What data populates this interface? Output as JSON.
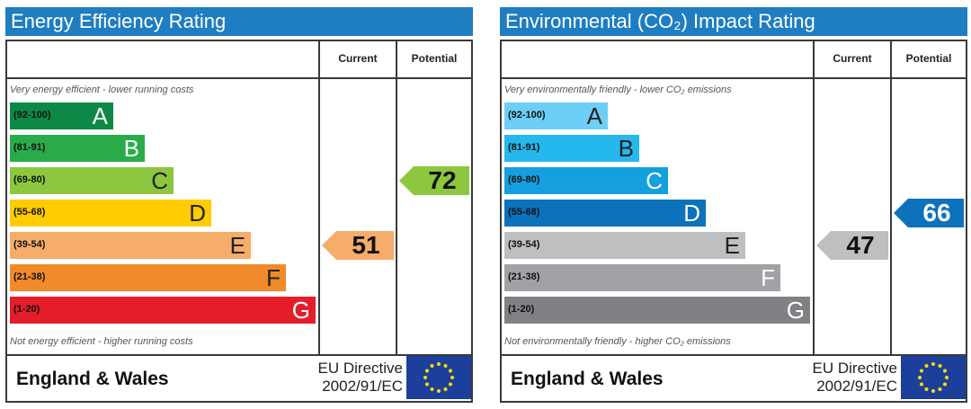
{
  "chart_data": [
    {
      "type": "bar",
      "title": "Energy Efficiency Rating",
      "columns": [
        "Current",
        "Potential"
      ],
      "top_note": "Very energy efficient - lower running costs",
      "bottom_note": "Not energy efficient - higher running costs",
      "bands": [
        {
          "range": "(92-100)",
          "letter": "A",
          "color": "#0c8a45"
        },
        {
          "range": "(81-91)",
          "letter": "B",
          "color": "#2aab4a"
        },
        {
          "range": "(69-80)",
          "letter": "C",
          "color": "#8dc63f"
        },
        {
          "range": "(55-68)",
          "letter": "D",
          "color": "#ffcc00"
        },
        {
          "range": "(39-54)",
          "letter": "E",
          "color": "#f6ac6a"
        },
        {
          "range": "(21-38)",
          "letter": "F",
          "color": "#f08a2a"
        },
        {
          "range": "(1-20)",
          "letter": "G",
          "color": "#e31e2a"
        }
      ],
      "current": {
        "value": 51,
        "band": "E",
        "color": "#f6ac6a"
      },
      "potential": {
        "value": 72,
        "band": "C",
        "color": "#8dc63f"
      },
      "footer": {
        "region": "England & Wales",
        "directive_line1": "EU Directive",
        "directive_line2": "2002/91/EC"
      }
    },
    {
      "type": "bar",
      "title": "Environmental (CO₂) Impact Rating",
      "columns": [
        "Current",
        "Potential"
      ],
      "top_note": "Very environmentally friendly - lower CO₂ emissions",
      "bottom_note": "Not environmentally friendly - higher CO₂ emissions",
      "bands": [
        {
          "range": "(92-100)",
          "letter": "A",
          "color": "#6dcff6"
        },
        {
          "range": "(81-91)",
          "letter": "B",
          "color": "#25b8ec"
        },
        {
          "range": "(69-80)",
          "letter": "C",
          "color": "#14a0de"
        },
        {
          "range": "(55-68)",
          "letter": "D",
          "color": "#0b72bb"
        },
        {
          "range": "(39-54)",
          "letter": "E",
          "color": "#bebfc1"
        },
        {
          "range": "(21-38)",
          "letter": "F",
          "color": "#a1a2a5"
        },
        {
          "range": "(1-20)",
          "letter": "G",
          "color": "#808184"
        }
      ],
      "current": {
        "value": 47,
        "band": "E",
        "color": "#bebfc1"
      },
      "potential": {
        "value": 66,
        "band": "D",
        "color": "#0b72bb"
      },
      "footer": {
        "region": "England & Wales",
        "directive_line1": "EU Directive",
        "directive_line2": "2002/91/EC"
      }
    }
  ]
}
